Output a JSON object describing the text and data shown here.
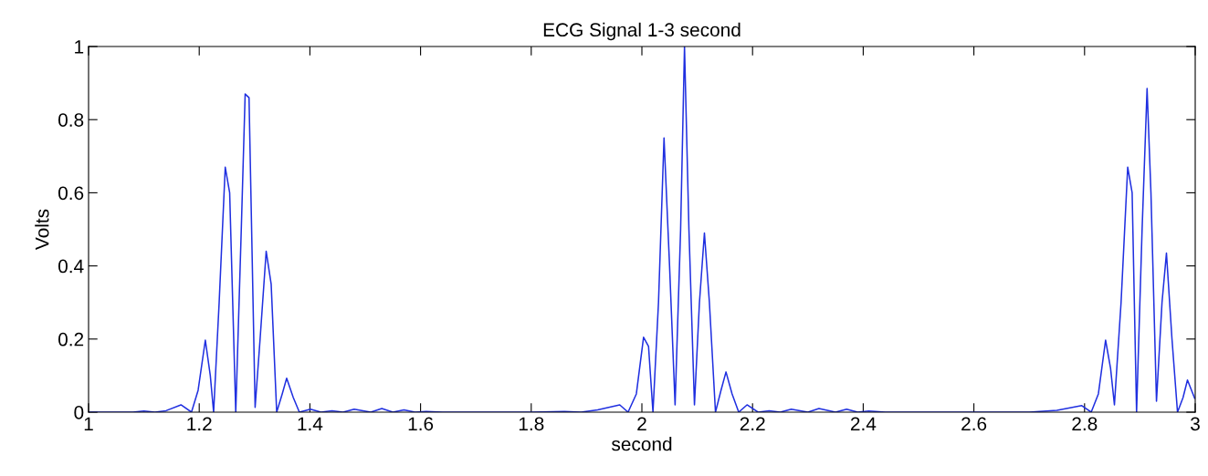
{
  "chart_data": {
    "type": "line",
    "title": "ECG Signal 1-3 second",
    "xlabel": "second",
    "ylabel": "Volts",
    "series": [
      {
        "color": "#1f2fe0",
        "x": [
          1.0,
          1.06,
          1.08,
          1.1,
          1.12,
          1.14,
          1.167,
          1.186,
          1.198,
          1.211,
          1.22,
          1.226,
          1.236,
          1.247,
          1.255,
          1.266,
          1.276,
          1.283,
          1.29,
          1.301,
          1.31,
          1.321,
          1.33,
          1.34,
          1.35,
          1.358,
          1.37,
          1.381,
          1.401,
          1.42,
          1.44,
          1.46,
          1.48,
          1.51,
          1.53,
          1.55,
          1.57,
          1.59,
          1.61,
          1.64,
          1.8,
          1.86,
          1.89,
          1.92,
          1.96,
          1.975,
          1.99,
          2.003,
          2.012,
          2.02,
          2.03,
          2.04,
          2.05,
          2.06,
          2.07,
          2.077,
          2.085,
          2.095,
          2.104,
          2.113,
          2.122,
          2.133,
          2.143,
          2.152,
          2.163,
          2.175,
          2.19,
          2.21,
          2.23,
          2.25,
          2.27,
          2.3,
          2.32,
          2.35,
          2.37,
          2.39,
          2.41,
          2.44,
          2.6,
          2.7,
          2.75,
          2.795,
          2.812,
          2.825,
          2.838,
          2.847,
          2.854,
          2.866,
          2.878,
          2.886,
          2.894,
          2.904,
          2.913,
          2.92,
          2.93,
          2.94,
          2.948,
          2.958,
          2.968,
          2.978,
          2.986,
          2.999
        ],
        "values": [
          0.0,
          0.0,
          0.0,
          0.003,
          0.0,
          0.004,
          0.02,
          0.0,
          0.06,
          0.197,
          0.1,
          0.0,
          0.3,
          0.67,
          0.6,
          0.0,
          0.5,
          0.87,
          0.86,
          0.013,
          0.2,
          0.44,
          0.35,
          0.0,
          0.05,
          0.093,
          0.04,
          0.0,
          0.008,
          0.0,
          0.004,
          0.0,
          0.008,
          0.0,
          0.01,
          0.0,
          0.006,
          0.0,
          0.002,
          0.0,
          0.0,
          0.002,
          0.0,
          0.006,
          0.02,
          0.0,
          0.05,
          0.205,
          0.18,
          0.0,
          0.3,
          0.75,
          0.4,
          0.02,
          0.5,
          1.0,
          0.5,
          0.02,
          0.3,
          0.49,
          0.3,
          0.0,
          0.06,
          0.11,
          0.05,
          0.0,
          0.02,
          0.0,
          0.004,
          0.0,
          0.008,
          0.0,
          0.01,
          0.0,
          0.008,
          0.0,
          0.003,
          0.0,
          0.0,
          0.0,
          0.005,
          0.018,
          0.0,
          0.05,
          0.197,
          0.12,
          0.02,
          0.3,
          0.67,
          0.6,
          0.0,
          0.5,
          0.885,
          0.6,
          0.03,
          0.3,
          0.435,
          0.2,
          0.0,
          0.04,
          0.088,
          0.038
        ]
      }
    ],
    "xlim": [
      1,
      3
    ],
    "ylim": [
      0,
      1
    ],
    "xticks": [
      1,
      1.2,
      1.4,
      1.6,
      1.8,
      2,
      2.2,
      2.4,
      2.6,
      2.8,
      3
    ],
    "yticks": [
      0,
      0.2,
      0.4,
      0.6,
      0.8,
      1
    ],
    "grid": false,
    "legend": false,
    "marker": "none",
    "line_style": "solid"
  }
}
